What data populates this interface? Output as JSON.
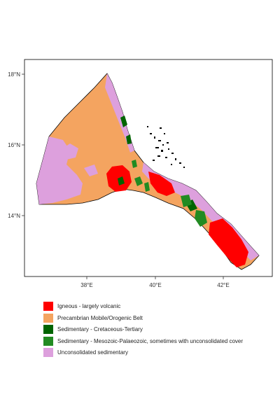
{
  "map": {
    "axes": {
      "y_ticks": [
        "18°N",
        "16°N",
        "14°N"
      ],
      "x_ticks": [
        "38°E",
        "40°E",
        "42°E"
      ]
    },
    "legend": [
      {
        "label": "Igneous - largely volcanic",
        "color": "#ff0000"
      },
      {
        "label": "Precambrian Mobile/Orogenic Belt",
        "color": "#f4a460"
      },
      {
        "label": "Sedimentary - Cretaceous-Tertiary",
        "color": "#006400"
      },
      {
        "label": "Sedimentary - Mesozoic-Palaeozoic, sometimes with unconsolidated cover",
        "color": "#228b22"
      },
      {
        "label": "Unconsolidated sedimentary",
        "color": "#dda0dd"
      }
    ]
  }
}
